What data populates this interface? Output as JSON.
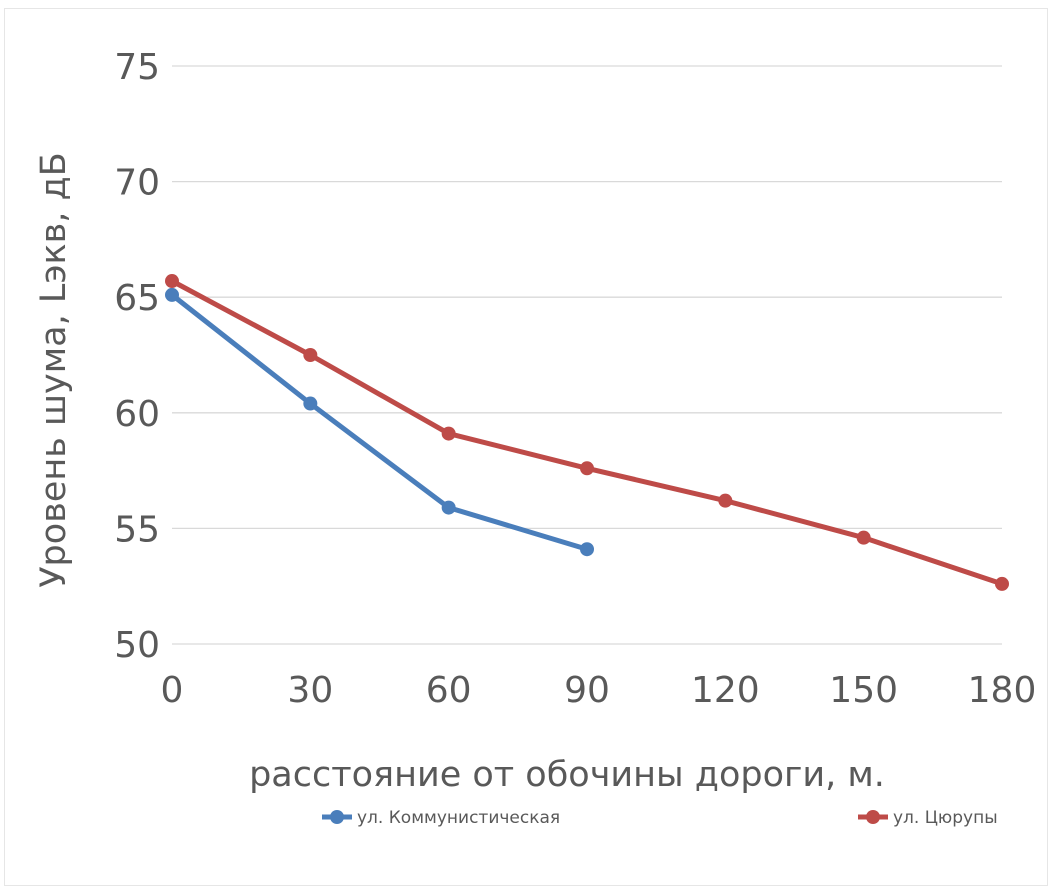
{
  "chart_data": {
    "type": "line",
    "title": "",
    "xlabel": "расстояние от обочины дороги, м.",
    "ylabel": "Уровень шума, Lэкв, дБ",
    "x": [
      0,
      30,
      60,
      90,
      120,
      150,
      180
    ],
    "x_ticks": [
      "0",
      "30",
      "60",
      "90",
      "120",
      "150",
      "180"
    ],
    "y_ticks": [
      "50",
      "55",
      "60",
      "65",
      "70",
      "75"
    ],
    "xlim": [
      0,
      180
    ],
    "ylim": [
      50,
      75
    ],
    "grid": "horizontal",
    "legend_position": "bottom",
    "series": [
      {
        "name": "ул. Коммунистическая",
        "color": "#4a7ebb",
        "x": [
          0,
          30,
          60,
          90
        ],
        "values": [
          65.1,
          60.4,
          55.9,
          54.1
        ]
      },
      {
        "name": "ул. Цюрупы",
        "color": "#be4b48",
        "x": [
          0,
          30,
          60,
          90,
          120,
          150,
          180
        ],
        "values": [
          65.7,
          62.5,
          59.1,
          57.6,
          56.2,
          54.6,
          52.6
        ]
      }
    ]
  }
}
